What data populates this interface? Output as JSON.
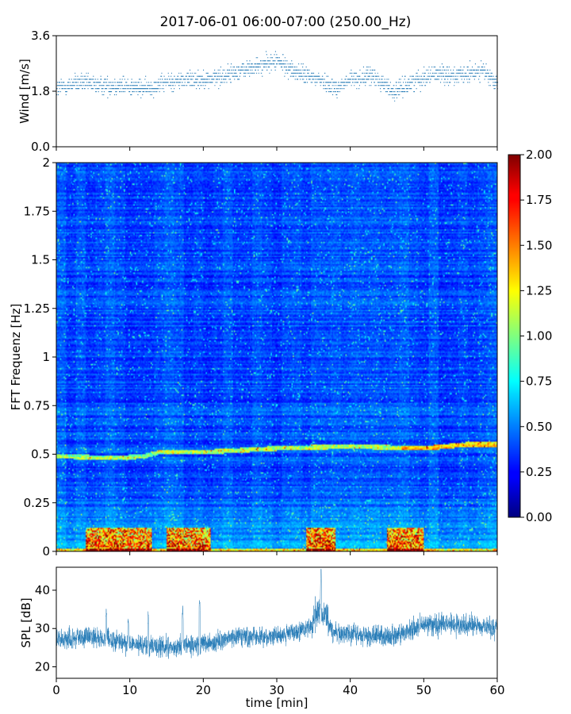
{
  "title": "2017-06-01 06:00-07:00 (250.00_Hz)",
  "chart_data": [
    {
      "type": "scatter",
      "name": "wind-panel",
      "ylabel": "Wind [m/s]",
      "ylim": [
        0,
        3.6
      ],
      "yticks": [
        "0.0",
        "1.8",
        "3.6"
      ],
      "xlim": [
        0,
        60
      ],
      "color": "#1f77b4",
      "baseline": [
        [
          0,
          1.9
        ],
        [
          3,
          2.1
        ],
        [
          6,
          2.0
        ],
        [
          9,
          2.0
        ],
        [
          12,
          1.9
        ],
        [
          15,
          2.1
        ],
        [
          18,
          2.2
        ],
        [
          21,
          2.2
        ],
        [
          24,
          2.4
        ],
        [
          27,
          2.6
        ],
        [
          30,
          2.8
        ],
        [
          32,
          2.5
        ],
        [
          34,
          2.3
        ],
        [
          36,
          2.2
        ],
        [
          38,
          1.9
        ],
        [
          40,
          2.2
        ],
        [
          43,
          2.3
        ],
        [
          46,
          1.8
        ],
        [
          49,
          2.2
        ],
        [
          52,
          2.4
        ],
        [
          55,
          2.3
        ],
        [
          58,
          2.5
        ],
        [
          60,
          2.0
        ]
      ]
    },
    {
      "type": "heatmap",
      "name": "fft-spectrogram",
      "ylabel": "FFT Frequenz [Hz]",
      "ylim": [
        0,
        2
      ],
      "yticks": [
        "0",
        "0.25",
        "0.5",
        "0.75",
        "1",
        "1.25",
        "1.5",
        "1.75",
        "2"
      ],
      "xlim": [
        0,
        60
      ],
      "colorbar": {
        "range": [
          0,
          2
        ],
        "ticks": [
          "0.00",
          "0.25",
          "0.50",
          "0.75",
          "1.00",
          "1.25",
          "1.50",
          "1.75",
          "2.00"
        ],
        "colormap": "jet"
      },
      "peak_line_hz": [
        [
          0,
          0.49
        ],
        [
          8,
          0.48
        ],
        [
          12,
          0.49
        ],
        [
          14,
          0.51
        ],
        [
          20,
          0.51
        ],
        [
          30,
          0.53
        ],
        [
          40,
          0.54
        ],
        [
          50,
          0.53
        ],
        [
          56,
          0.55
        ],
        [
          60,
          0.55
        ]
      ],
      "low_freq_hot_spans_min": [
        [
          4,
          13
        ],
        [
          15,
          21
        ],
        [
          34,
          38
        ],
        [
          45,
          50
        ]
      ]
    },
    {
      "type": "line",
      "name": "spl-panel",
      "ylabel": "SPL [dB]",
      "xlabel": "time [min]",
      "ylim": [
        17,
        46
      ],
      "yticks": [
        "20",
        "30",
        "40"
      ],
      "xlim": [
        0,
        60
      ],
      "xticks": [
        "0",
        "10",
        "20",
        "30",
        "40",
        "50",
        "60"
      ],
      "color": "#1f77b4",
      "baseline": [
        [
          0,
          27
        ],
        [
          5,
          28
        ],
        [
          10,
          26
        ],
        [
          15,
          25
        ],
        [
          20,
          26
        ],
        [
          25,
          28
        ],
        [
          30,
          28
        ],
        [
          34,
          30
        ],
        [
          36,
          32
        ],
        [
          38,
          29
        ],
        [
          42,
          28
        ],
        [
          46,
          28
        ],
        [
          50,
          31
        ],
        [
          55,
          31
        ],
        [
          60,
          30
        ]
      ],
      "spikes": [
        [
          6.8,
          36
        ],
        [
          9.8,
          34
        ],
        [
          12.5,
          35
        ],
        [
          17.2,
          37
        ],
        [
          19.5,
          39
        ],
        [
          36.0,
          44
        ],
        [
          49.5,
          35
        ]
      ]
    }
  ]
}
